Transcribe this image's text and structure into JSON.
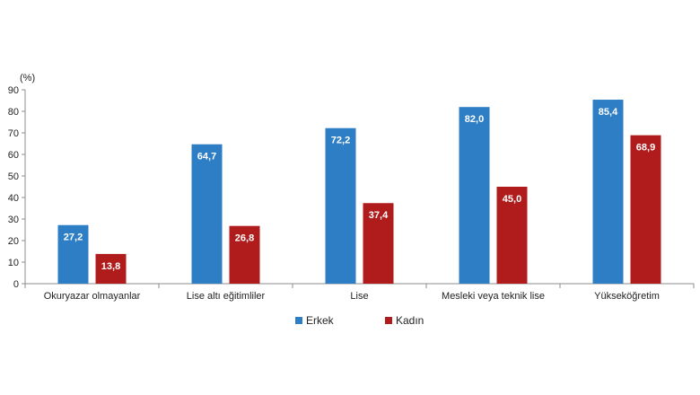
{
  "chart_data": {
    "type": "bar",
    "title": "",
    "ylabel": "(%)",
    "xlabel": "",
    "ylim": [
      0,
      90
    ],
    "yticks": [
      0,
      10,
      20,
      30,
      40,
      50,
      60,
      70,
      80,
      90
    ],
    "grid": false,
    "legend_position": "bottom",
    "categories": [
      "Okuryazar olmayanlar",
      "Lise altı eğitimliler",
      "Lise",
      "Mesleki veya teknik lise",
      "Yükseköğretim"
    ],
    "series": [
      {
        "name": "Erkek",
        "color": "#2e7ec5",
        "values": [
          27.2,
          64.7,
          72.2,
          82.0,
          85.4
        ],
        "labels": [
          "27,2",
          "64,7",
          "72,2",
          "82,0",
          "85,4"
        ]
      },
      {
        "name": "Kadın",
        "color": "#b01c1c",
        "values": [
          13.8,
          26.8,
          37.4,
          45.0,
          68.9
        ],
        "labels": [
          "13,8",
          "26,8",
          "37,4",
          "45,0",
          "68,9"
        ]
      }
    ]
  }
}
